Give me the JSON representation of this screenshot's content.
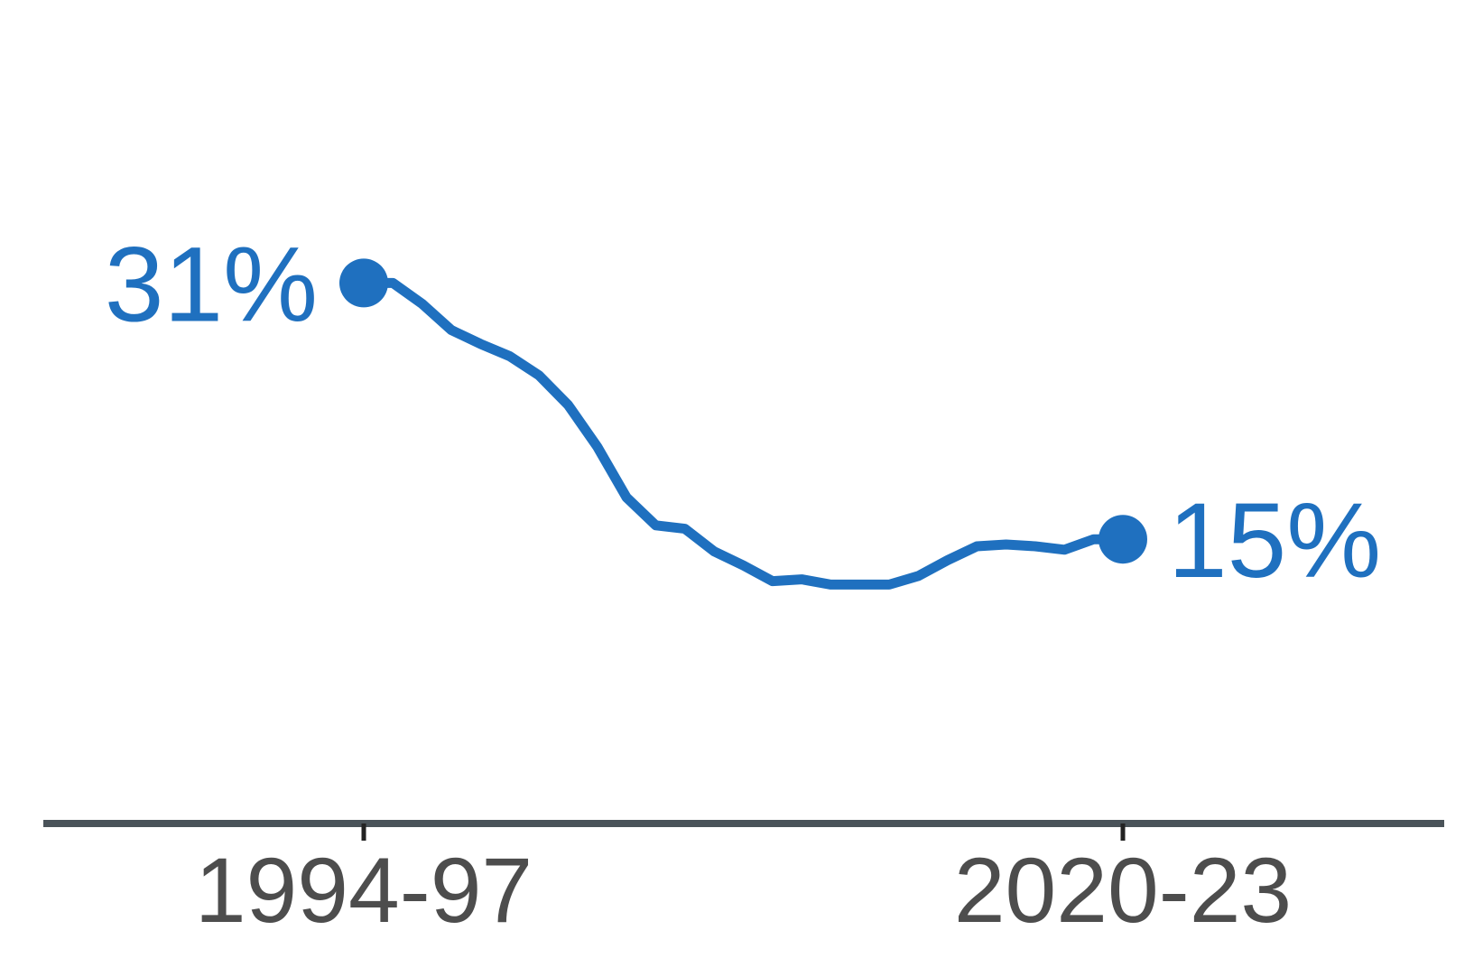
{
  "colors": {
    "series": "#1f70bf",
    "axis": "#4a5359",
    "tick_text": "#4d4d4d"
  },
  "chart_data": {
    "type": "line",
    "title": "",
    "xlabel": "",
    "ylabel": "",
    "grid": false,
    "legend": "none",
    "x_tick_labels": [
      "1994-97",
      "2020-23"
    ],
    "start_label": "31%",
    "end_label": "15%",
    "ylim": [
      0,
      45
    ],
    "series": [
      {
        "values": [
          31.0,
          31.0,
          29.8,
          28.3,
          27.5,
          26.8,
          25.7,
          24.0,
          21.6,
          18.7,
          17.1,
          16.9,
          15.6,
          14.8,
          13.9,
          14.0,
          13.7,
          13.7,
          13.7,
          14.2,
          15.1,
          15.9,
          16.0,
          15.9,
          15.7,
          16.3,
          16.3
        ]
      }
    ]
  }
}
